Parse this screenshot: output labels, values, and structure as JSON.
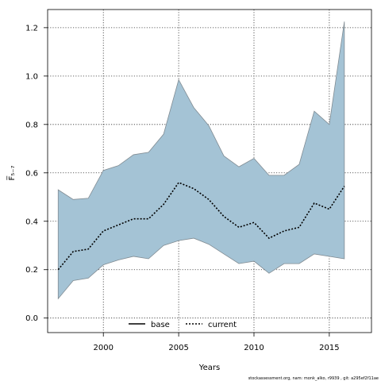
{
  "chart_data": {
    "type": "area",
    "xlabel": "Years",
    "ylabel": "F̅₅₋₇",
    "xlim": [
      1996.3,
      2017.8
    ],
    "ylim": [
      -0.06,
      1.275
    ],
    "xticks": [
      2000,
      2005,
      2010,
      2015
    ],
    "yticks": [
      0.0,
      0.2,
      0.4,
      0.6,
      0.8,
      1.0,
      1.2
    ],
    "grid": true,
    "legend": {
      "position": "bottom-center",
      "entries": [
        "base",
        "current"
      ]
    },
    "x": [
      1997,
      1998,
      1999,
      2000,
      2001,
      2002,
      2003,
      2004,
      2005,
      2006,
      2007,
      2008,
      2009,
      2010,
      2011,
      2012,
      2013,
      2014,
      2015,
      2016
    ],
    "series": [
      {
        "name": "current",
        "style": "dotted",
        "color": "#000000",
        "values": [
          0.2,
          0.275,
          0.285,
          0.36,
          0.385,
          0.41,
          0.41,
          0.47,
          0.56,
          0.535,
          0.49,
          0.42,
          0.375,
          0.395,
          0.33,
          0.36,
          0.375,
          0.475,
          0.45,
          0.545
        ]
      }
    ],
    "band": {
      "color": "#a4c3d5",
      "edge_color": "#808b92",
      "lower": [
        0.08,
        0.155,
        0.165,
        0.22,
        0.24,
        0.255,
        0.245,
        0.3,
        0.32,
        0.33,
        0.305,
        0.265,
        0.225,
        0.235,
        0.185,
        0.225,
        0.225,
        0.265,
        0.255,
        0.245
      ],
      "upper": [
        0.53,
        0.49,
        0.495,
        0.61,
        0.63,
        0.675,
        0.685,
        0.76,
        0.985,
        0.87,
        0.795,
        0.67,
        0.625,
        0.66,
        0.59,
        0.59,
        0.635,
        0.855,
        0.8,
        1.225
      ]
    }
  },
  "legend": {
    "base_label": "base",
    "current_label": "current"
  },
  "footer": {
    "text": "stockassessment.org, nam: monk_alko, r9939 , git: a295ef2f11ae"
  }
}
